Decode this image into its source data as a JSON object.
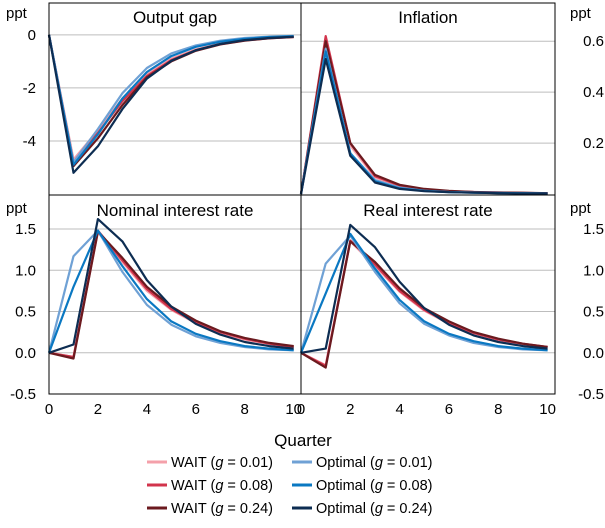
{
  "chart_data": {
    "type": "line",
    "xlabel": "Quarter",
    "unit_label": "ppt",
    "x": [
      0,
      1,
      2,
      3,
      4,
      5,
      6,
      7,
      8,
      9,
      10
    ],
    "xticks": [
      "0",
      "2",
      "4",
      "6",
      "8",
      "10"
    ],
    "legend": [
      {
        "prefix": "WAIT (",
        "g": "g",
        "suffix": " = 0.01)",
        "color": "#F4A0AA"
      },
      {
        "prefix": "WAIT (",
        "g": "g",
        "suffix": " = 0.08)",
        "color": "#D2344C"
      },
      {
        "prefix": "WAIT (",
        "g": "g",
        "suffix": " = 0.24)",
        "color": "#6B1A1F"
      },
      {
        "prefix": "Optimal (",
        "g": "g",
        "suffix": " = 0.01)",
        "color": "#6FA1D5"
      },
      {
        "prefix": "Optimal (",
        "g": "g",
        "suffix": " = 0.08)",
        "color": "#0A78C2"
      },
      {
        "prefix": "Optimal (",
        "g": "g",
        "suffix": " = 0.24)",
        "color": "#0D2D52"
      }
    ],
    "panels": [
      {
        "title": "Output gap",
        "ylim": [
          -6,
          1.2
        ],
        "yticks": [
          0,
          -2,
          -4
        ],
        "ytick_labels": [
          "0",
          "-2",
          "-4"
        ],
        "series": [
          {
            "name": "WAIT (g = 0.01)",
            "values": [
              0,
              -4.7,
              -3.6,
              -2.4,
              -1.5,
              -0.9,
              -0.55,
              -0.33,
              -0.2,
              -0.12,
              -0.07
            ]
          },
          {
            "name": "WAIT (g = 0.08)",
            "values": [
              0,
              -4.8,
              -3.7,
              -2.5,
              -1.55,
              -0.95,
              -0.58,
              -0.35,
              -0.21,
              -0.13,
              -0.08
            ]
          },
          {
            "name": "WAIT (g = 0.24)",
            "values": [
              0,
              -4.95,
              -3.9,
              -2.65,
              -1.6,
              -1.0,
              -0.6,
              -0.36,
              -0.22,
              -0.13,
              -0.08
            ]
          },
          {
            "name": "Optimal (g = 0.01)",
            "values": [
              0,
              -4.8,
              -3.55,
              -2.2,
              -1.25,
              -0.7,
              -0.4,
              -0.22,
              -0.12,
              -0.07,
              -0.04
            ]
          },
          {
            "name": "Optimal (g = 0.08)",
            "values": [
              0,
              -4.9,
              -3.75,
              -2.4,
              -1.4,
              -0.8,
              -0.45,
              -0.26,
              -0.15,
              -0.08,
              -0.05
            ]
          },
          {
            "name": "Optimal (g = 0.24)",
            "values": [
              0,
              -5.2,
              -4.2,
              -2.8,
              -1.65,
              -0.98,
              -0.58,
              -0.34,
              -0.2,
              -0.12,
              -0.07
            ]
          }
        ]
      },
      {
        "title": "Inflation",
        "ylim": [
          0,
          0.75
        ],
        "yticks": [
          0.6,
          0.4,
          0.2
        ],
        "ytick_labels": [
          "0.6",
          "0.4",
          "0.2"
        ],
        "series": [
          {
            "name": "WAIT (g = 0.01)",
            "values": [
              0,
              0.61,
              0.19,
              0.065,
              0.03,
              0.016,
              0.01,
              0.007,
              0.005,
              0.004,
              0.003
            ]
          },
          {
            "name": "WAIT (g = 0.08)",
            "values": [
              0,
              0.62,
              0.2,
              0.07,
              0.033,
              0.018,
              0.011,
              0.008,
              0.006,
              0.004,
              0.003
            ]
          },
          {
            "name": "WAIT (g = 0.24)",
            "values": [
              0,
              0.6,
              0.2,
              0.075,
              0.036,
              0.02,
              0.012,
              0.008,
              0.006,
              0.005,
              0.003
            ]
          },
          {
            "name": "Optimal (g = 0.01)",
            "values": [
              0,
              0.57,
              0.16,
              0.055,
              0.025,
              0.013,
              0.008,
              0.006,
              0.004,
              0.003,
              0.002
            ]
          },
          {
            "name": "Optimal (g = 0.08)",
            "values": [
              0,
              0.56,
              0.16,
              0.05,
              0.022,
              0.012,
              0.007,
              0.005,
              0.004,
              0.003,
              0.002
            ]
          },
          {
            "name": "Optimal (g = 0.24)",
            "values": [
              0,
              0.53,
              0.15,
              0.045,
              0.02,
              0.011,
              0.007,
              0.005,
              0.003,
              0.002,
              0.002
            ]
          }
        ]
      },
      {
        "title": "Nominal interest rate",
        "ylim": [
          -0.5,
          1.9
        ],
        "yticks": [
          1.5,
          1.0,
          0.5,
          0.0,
          -0.5
        ],
        "ytick_labels": [
          "1.5",
          "1.0",
          "0.5",
          "0.0",
          "-0.5"
        ],
        "series": [
          {
            "name": "WAIT (g = 0.01)",
            "values": [
              0,
              -0.05,
              1.46,
              1.1,
              0.75,
              0.52,
              0.36,
              0.24,
              0.16,
              0.11,
              0.07
            ]
          },
          {
            "name": "WAIT (g = 0.08)",
            "values": [
              0,
              -0.05,
              1.48,
              1.12,
              0.77,
              0.53,
              0.37,
              0.25,
              0.17,
              0.11,
              0.07
            ]
          },
          {
            "name": "WAIT (g = 0.24)",
            "values": [
              0,
              -0.07,
              1.47,
              1.15,
              0.8,
              0.56,
              0.39,
              0.26,
              0.18,
              0.12,
              0.08
            ]
          },
          {
            "name": "Optimal (g = 0.01)",
            "values": [
              0,
              1.17,
              1.48,
              0.98,
              0.58,
              0.34,
              0.2,
              0.12,
              0.07,
              0.04,
              0.03
            ]
          },
          {
            "name": "Optimal (g = 0.08)",
            "values": [
              0,
              0.8,
              1.48,
              1.05,
              0.65,
              0.38,
              0.23,
              0.14,
              0.08,
              0.05,
              0.03
            ]
          },
          {
            "name": "Optimal (g = 0.24)",
            "values": [
              0,
              0.1,
              1.62,
              1.35,
              0.88,
              0.56,
              0.35,
              0.22,
              0.13,
              0.08,
              0.05
            ]
          }
        ]
      },
      {
        "title": "Real interest rate",
        "ylim": [
          -0.5,
          1.9
        ],
        "yticks": [
          1.5,
          1.0,
          0.5,
          0.0,
          -0.5
        ],
        "ytick_labels": [
          "1.5",
          "1.0",
          "0.5",
          "0.0",
          "-0.5"
        ],
        "series": [
          {
            "name": "WAIT (g = 0.01)",
            "values": [
              0,
              -0.15,
              1.35,
              1.05,
              0.74,
              0.51,
              0.35,
              0.24,
              0.16,
              0.1,
              0.07
            ]
          },
          {
            "name": "WAIT (g = 0.08)",
            "values": [
              0,
              -0.16,
              1.36,
              1.07,
              0.75,
              0.52,
              0.36,
              0.24,
              0.16,
              0.11,
              0.07
            ]
          },
          {
            "name": "WAIT (g = 0.24)",
            "values": [
              0,
              -0.18,
              1.35,
              1.1,
              0.78,
              0.54,
              0.38,
              0.25,
              0.17,
              0.11,
              0.07
            ]
          },
          {
            "name": "Optimal (g = 0.01)",
            "values": [
              0,
              1.08,
              1.42,
              0.98,
              0.6,
              0.35,
              0.21,
              0.12,
              0.07,
              0.04,
              0.03
            ]
          },
          {
            "name": "Optimal (g = 0.08)",
            "values": [
              0,
              0.72,
              1.44,
              1.02,
              0.64,
              0.38,
              0.23,
              0.14,
              0.08,
              0.05,
              0.03
            ]
          },
          {
            "name": "Optimal (g = 0.24)",
            "values": [
              0,
              0.05,
              1.55,
              1.28,
              0.86,
              0.54,
              0.34,
              0.21,
              0.13,
              0.08,
              0.05
            ]
          }
        ]
      }
    ]
  }
}
